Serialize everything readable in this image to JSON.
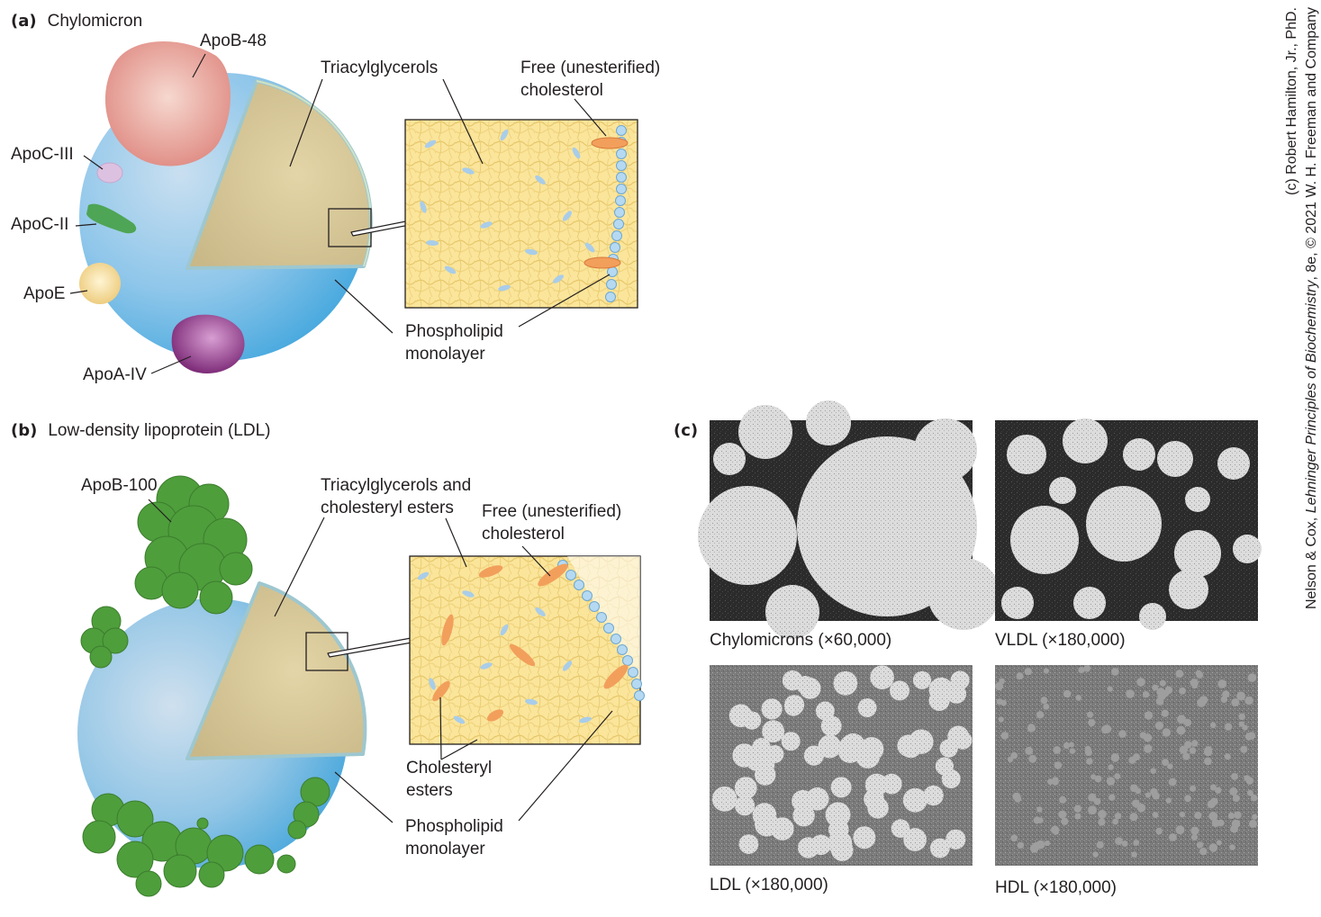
{
  "panel_a": {
    "letter": "(a)",
    "title": "Chylomicron",
    "labels": {
      "apob48": "ApoB-48",
      "apoc3": "ApoC-III",
      "apoc2": "ApoC-II",
      "apoe": "ApoE",
      "apoa4": "ApoA-IV",
      "triacylglycerols": "Triacylglycerols",
      "free_chol_1": "Free (unesterified)",
      "free_chol_2": "cholesterol",
      "phospholipid_1": "Phospholipid",
      "phospholipid_2": "monolayer"
    },
    "colors": {
      "sphere": "#6cb8e0",
      "core": "#d8c99a",
      "apob48": "#e8a49a",
      "apoc3": "#d8b8dc",
      "apoc2": "#4fa65a",
      "apoe": "#f3dc9a",
      "apoa4": "#9a3d92"
    }
  },
  "panel_b": {
    "letter": "(b)",
    "title": "Low-density lipoprotein (LDL)",
    "labels": {
      "apob100": "ApoB-100",
      "tag_chol_1": "Triacylglycerols and",
      "tag_chol_2": "cholesteryl esters",
      "free_chol_1": "Free (unesterified)",
      "free_chol_2": "cholesterol",
      "chol_esters_1": "Cholesteryl",
      "chol_esters_2": "esters",
      "phospholipid_1": "Phospholipid",
      "phospholipid_2": "monolayer"
    },
    "colors": {
      "apob100": "#4e9e3c",
      "sphere": "#6cb8e0",
      "core": "#d8c99a"
    }
  },
  "panel_c": {
    "letter": "(c)",
    "micrographs": [
      {
        "caption": "Chylomicrons (×60,000)"
      },
      {
        "caption": "VLDL (×180,000)"
      },
      {
        "caption": "LDL (×180,000)"
      },
      {
        "caption": "HDL (×180,000)"
      }
    ]
  },
  "credit": {
    "line1": "(c) Robert Hamilton, Jr., PhD.",
    "line2_author": "Nelson & Cox, ",
    "line2_title": "Lehninger Principles of Biochemistry",
    "line2_rest": ", 8e, © 2021 W. H. Freeman and Company"
  }
}
